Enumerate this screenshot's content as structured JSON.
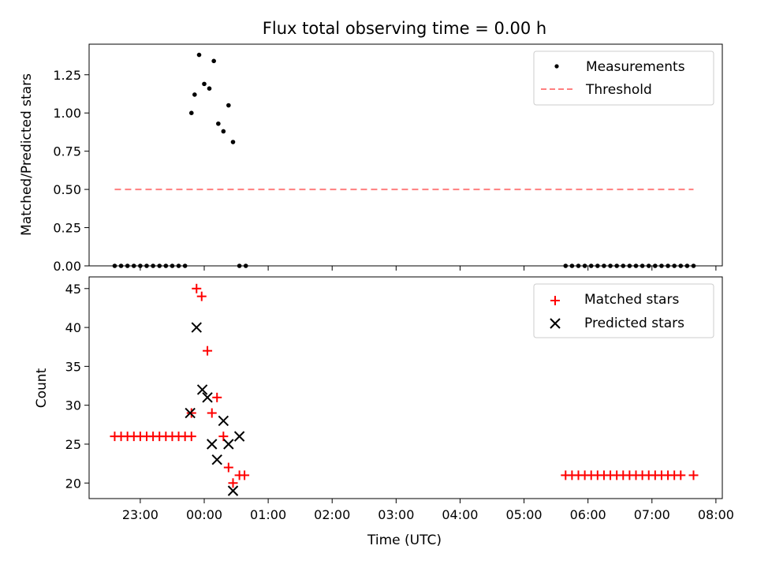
{
  "title": "Flux total observing time = 0.00 h",
  "chart_data": [
    {
      "type": "scatter",
      "panel": "top",
      "title": "Flux total observing time = 0.00 h",
      "xlabel": "",
      "ylabel": "Matched/Predicted stars",
      "x_unit": "hours since 00:00 UTC",
      "xlim": [
        -1.4,
        8.1
      ],
      "ylim": [
        0.0,
        1.45
      ],
      "yticks": [
        0.0,
        0.25,
        0.5,
        0.75,
        1.0,
        1.25
      ],
      "ytick_labels": [
        "0.00",
        "0.25",
        "0.50",
        "0.75",
        "1.00",
        "1.25"
      ],
      "legend_position": "top-right",
      "series": [
        {
          "name": "Measurements",
          "marker": "dot",
          "color": "#000000",
          "x": [
            -1.4,
            -1.3,
            -1.2,
            -1.1,
            -1.0,
            -0.9,
            -0.8,
            -0.7,
            -0.6,
            -0.5,
            -0.4,
            -0.3,
            -0.2,
            -0.15,
            -0.08,
            0.0,
            0.08,
            0.15,
            0.22,
            0.3,
            0.38,
            0.45,
            0.55,
            0.65,
            5.65,
            5.75,
            5.85,
            5.95,
            6.05,
            6.15,
            6.25,
            6.35,
            6.45,
            6.55,
            6.65,
            6.75,
            6.85,
            6.95,
            7.05,
            7.15,
            7.25,
            7.35,
            7.45,
            7.55,
            7.65
          ],
          "y": [
            0,
            0,
            0,
            0,
            0,
            0,
            0,
            0,
            0,
            0,
            0,
            0,
            1.0,
            1.12,
            1.38,
            1.19,
            1.16,
            1.34,
            0.93,
            0.88,
            1.05,
            0.81,
            0.0,
            0,
            0,
            0,
            0,
            0,
            0,
            0,
            0,
            0,
            0,
            0,
            0,
            0,
            0,
            0,
            0,
            0,
            0,
            0,
            0,
            0,
            0
          ]
        },
        {
          "name": "Threshold",
          "style": "dashed",
          "color": "#ff7f7f",
          "x": [
            -1.4,
            7.65
          ],
          "y": [
            0.5,
            0.5
          ]
        }
      ]
    },
    {
      "type": "scatter",
      "panel": "bottom",
      "xlabel": "Time (UTC)",
      "ylabel": "Count",
      "x_unit": "hours since 00:00 UTC",
      "xlim": [
        -1.4,
        8.1
      ],
      "ylim": [
        18,
        46.5
      ],
      "yticks": [
        20,
        25,
        30,
        35,
        40,
        45
      ],
      "xticks": [
        -1,
        0,
        1,
        2,
        3,
        4,
        5,
        6,
        7,
        8
      ],
      "xtick_labels": [
        "23:00",
        "00:00",
        "01:00",
        "02:00",
        "03:00",
        "04:00",
        "05:00",
        "06:00",
        "07:00",
        "08:00"
      ],
      "legend_position": "top-right",
      "series": [
        {
          "name": "Matched stars",
          "marker": "plus",
          "color": "#ff0000",
          "x": [
            -1.4,
            -1.3,
            -1.2,
            -1.1,
            -1.0,
            -0.9,
            -0.8,
            -0.7,
            -0.6,
            -0.5,
            -0.4,
            -0.3,
            -0.2,
            -0.2,
            -0.12,
            -0.04,
            0.05,
            0.12,
            0.2,
            0.3,
            0.38,
            0.45,
            0.55,
            0.63,
            5.65,
            5.75,
            5.85,
            5.95,
            6.05,
            6.15,
            6.25,
            6.35,
            6.45,
            6.55,
            6.65,
            6.75,
            6.85,
            6.95,
            7.05,
            7.15,
            7.25,
            7.35,
            7.45,
            7.65
          ],
          "y": [
            26,
            26,
            26,
            26,
            26,
            26,
            26,
            26,
            26,
            26,
            26,
            26,
            26,
            29,
            45,
            44,
            37,
            29,
            31,
            26,
            22,
            20,
            21,
            21,
            21,
            21,
            21,
            21,
            21,
            21,
            21,
            21,
            21,
            21,
            21,
            21,
            21,
            21,
            21,
            21,
            21,
            21,
            21,
            21
          ]
        },
        {
          "name": "Predicted stars",
          "marker": "x",
          "color": "#000000",
          "x": [
            -0.22,
            -0.12,
            -0.03,
            0.05,
            0.12,
            0.2,
            0.3,
            0.38,
            0.45,
            0.55
          ],
          "y": [
            29,
            40,
            32,
            31,
            25,
            23,
            28,
            25,
            19,
            26
          ]
        }
      ]
    }
  ]
}
